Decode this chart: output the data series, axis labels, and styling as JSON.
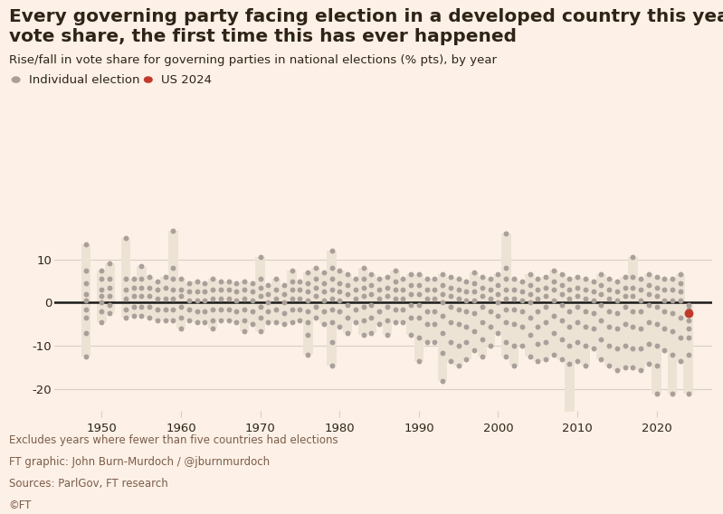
{
  "title_line1": "Every governing party facing election in a developed country this year lost",
  "title_line2": "vote share, the first time this has ever happened",
  "subtitle": "Rise/fall in vote share for governing parties in national elections (% pts), by year",
  "legend_individual": "Individual election",
  "legend_us2024": "US 2024",
  "background_color": "#fdf0e6",
  "dot_color": "#aaa09a",
  "highlight_color": "#c0392b",
  "bar_color": "#ede3d5",
  "zero_line_color": "#1a1a1a",
  "grid_color": "#d8cfc7",
  "text_color": "#2d2416",
  "footnote_color": "#7a5c48",
  "ylabel_range": [
    -25,
    20
  ],
  "yticks": [
    -20,
    -10,
    0,
    10
  ],
  "xticks": [
    1950,
    1960,
    1970,
    1980,
    1990,
    2000,
    2010,
    2020
  ],
  "footnote1": "Excludes years where fewer than five countries had elections",
  "footnote2": "FT graphic: John Burn-Murdoch / @jburnmurdoch",
  "footnote3": "Sources: ParlGov, FT research",
  "footnote4": "©FT",
  "elections": {
    "1948": [
      13.5,
      7.5,
      4.5,
      2.0,
      0.5,
      -1.5,
      -3.5,
      -7.0,
      -12.5
    ],
    "1950": [
      7.5,
      5.5,
      3.0,
      1.5,
      0.0,
      -2.0,
      -4.5
    ],
    "1951": [
      9.0,
      5.5,
      3.5,
      1.5,
      -0.5,
      -2.5
    ],
    "1953": [
      15.0,
      5.5,
      3.0,
      1.0,
      -1.5,
      -3.5
    ],
    "1954": [
      5.5,
      3.5,
      1.5,
      -1.0,
      -3.0
    ],
    "1955": [
      8.5,
      5.5,
      3.5,
      1.5,
      -1.0,
      -3.0
    ],
    "1956": [
      6.0,
      3.5,
      1.5,
      -1.0,
      -3.5
    ],
    "1957": [
      5.0,
      3.0,
      1.0,
      -1.5,
      -4.0
    ],
    "1958": [
      6.0,
      3.5,
      1.0,
      -1.5,
      -4.0
    ],
    "1959": [
      16.5,
      8.0,
      5.5,
      3.0,
      1.0,
      -1.5,
      -4.0
    ],
    "1960": [
      5.5,
      3.0,
      1.5,
      -1.0,
      -3.5,
      -6.0
    ],
    "1961": [
      4.5,
      2.5,
      0.5,
      -1.5,
      -4.0
    ],
    "1962": [
      5.0,
      2.5,
      0.5,
      -2.0,
      -4.5
    ],
    "1963": [
      4.5,
      2.5,
      0.5,
      -2.0,
      -4.5
    ],
    "1964": [
      5.5,
      3.0,
      1.0,
      -1.5,
      -4.0,
      -6.0
    ],
    "1965": [
      5.0,
      3.0,
      1.0,
      -1.5,
      -4.0
    ],
    "1966": [
      5.0,
      3.0,
      1.0,
      -1.5,
      -4.0
    ],
    "1967": [
      4.5,
      2.5,
      0.5,
      -2.0,
      -4.5
    ],
    "1968": [
      5.0,
      3.0,
      1.0,
      -1.5,
      -4.0,
      -6.5
    ],
    "1969": [
      4.5,
      2.5,
      0.5,
      -2.0,
      -5.0
    ],
    "1970": [
      10.5,
      5.5,
      3.5,
      1.5,
      -1.0,
      -3.5,
      -6.5
    ],
    "1971": [
      4.0,
      2.0,
      0.0,
      -2.0,
      -4.5
    ],
    "1972": [
      5.5,
      3.0,
      1.0,
      -1.5,
      -4.5
    ],
    "1973": [
      4.0,
      2.0,
      0.0,
      -2.5,
      -5.0
    ],
    "1974": [
      7.5,
      5.0,
      3.0,
      1.0,
      -1.5,
      -4.5
    ],
    "1975": [
      5.0,
      3.0,
      1.0,
      -1.5,
      -4.0
    ],
    "1976": [
      7.0,
      4.5,
      2.5,
      0.5,
      -2.0,
      -4.5,
      -7.5,
      -12.0
    ],
    "1977": [
      8.0,
      5.5,
      3.5,
      1.5,
      -1.0,
      -3.5
    ],
    "1978": [
      7.0,
      4.5,
      2.5,
      0.5,
      -2.0,
      -5.0
    ],
    "1979": [
      12.0,
      8.0,
      5.5,
      3.0,
      1.0,
      -1.5,
      -4.5,
      -9.0,
      -14.5
    ],
    "1980": [
      7.5,
      4.5,
      2.5,
      0.5,
      -2.0,
      -5.5
    ],
    "1981": [
      6.5,
      4.0,
      2.0,
      -0.5,
      -3.5,
      -7.0
    ],
    "1982": [
      5.5,
      3.0,
      1.0,
      -1.5,
      -4.5
    ],
    "1983": [
      8.0,
      5.5,
      3.5,
      1.5,
      -1.0,
      -4.0,
      -7.5
    ],
    "1984": [
      6.5,
      4.0,
      2.0,
      -0.5,
      -3.5,
      -7.0
    ],
    "1985": [
      5.5,
      3.0,
      1.0,
      -2.0,
      -5.0
    ],
    "1986": [
      6.0,
      3.5,
      1.5,
      -1.0,
      -4.0,
      -7.5
    ],
    "1987": [
      7.5,
      5.0,
      3.0,
      1.0,
      -1.5,
      -4.5
    ],
    "1988": [
      5.5,
      3.0,
      1.0,
      -1.5,
      -4.5
    ],
    "1989": [
      6.5,
      4.0,
      2.0,
      -0.5,
      -3.5,
      -7.5
    ],
    "1990": [
      6.5,
      4.0,
      2.0,
      -0.5,
      -3.5,
      -8.0,
      -13.5
    ],
    "1991": [
      5.5,
      3.0,
      1.0,
      -2.0,
      -5.0,
      -9.0
    ],
    "1992": [
      5.5,
      3.0,
      1.0,
      -2.0,
      -5.0,
      -9.0
    ],
    "1993": [
      6.5,
      4.0,
      2.0,
      0.0,
      -3.0,
      -7.0,
      -11.5,
      -18.0
    ],
    "1994": [
      6.0,
      3.5,
      1.5,
      -1.0,
      -4.5,
      -9.0,
      -13.5
    ],
    "1995": [
      5.5,
      3.0,
      1.0,
      -1.5,
      -5.0,
      -10.0,
      -14.5
    ],
    "1996": [
      5.0,
      2.5,
      0.5,
      -2.0,
      -5.5,
      -9.0,
      -13.0
    ],
    "1997": [
      7.0,
      4.5,
      2.5,
      0.5,
      -2.5,
      -6.5,
      -11.0
    ],
    "1998": [
      6.0,
      3.5,
      1.5,
      -1.0,
      -4.5,
      -8.5,
      -12.5
    ],
    "1999": [
      5.5,
      3.0,
      1.0,
      -2.0,
      -5.5,
      -10.0
    ],
    "2000": [
      6.5,
      4.0,
      2.0,
      0.0,
      -3.0,
      -7.0
    ],
    "2001": [
      16.0,
      8.0,
      5.5,
      3.0,
      1.0,
      -1.5,
      -4.5,
      -9.0,
      -12.5
    ],
    "2002": [
      5.5,
      3.0,
      1.0,
      -1.5,
      -5.0,
      -10.0,
      -14.5
    ],
    "2003": [
      5.0,
      2.5,
      0.5,
      -2.0,
      -5.5,
      -10.0
    ],
    "2004": [
      6.5,
      4.0,
      2.0,
      0.0,
      -3.5,
      -7.5,
      -12.5
    ],
    "2005": [
      5.5,
      3.0,
      1.0,
      -2.0,
      -5.5,
      -9.5,
      -13.5
    ],
    "2006": [
      6.0,
      3.5,
      1.5,
      -1.0,
      -4.5,
      -9.0,
      -13.0
    ],
    "2007": [
      7.5,
      5.0,
      3.0,
      0.5,
      -3.0,
      -7.0,
      -12.0
    ],
    "2008": [
      6.5,
      4.0,
      2.0,
      -0.5,
      -4.0,
      -8.5,
      -13.0
    ],
    "2009": [
      5.5,
      3.0,
      1.0,
      -2.0,
      -5.5,
      -10.0,
      -14.0,
      -26.5
    ],
    "2010": [
      6.0,
      3.5,
      1.5,
      -1.0,
      -4.5,
      -9.0,
      -13.5
    ],
    "2011": [
      5.5,
      3.0,
      1.0,
      -2.0,
      -5.5,
      -10.0,
      -14.5
    ],
    "2012": [
      5.0,
      2.5,
      0.5,
      -2.5,
      -6.0,
      -10.5
    ],
    "2013": [
      6.5,
      4.0,
      2.0,
      -0.5,
      -4.0,
      -8.5,
      -13.0
    ],
    "2014": [
      5.5,
      3.0,
      1.0,
      -2.0,
      -5.5,
      -10.0,
      -14.5
    ],
    "2015": [
      5.0,
      2.5,
      0.5,
      -2.5,
      -6.0,
      -10.5,
      -15.5
    ],
    "2016": [
      6.0,
      3.5,
      1.5,
      -1.0,
      -5.0,
      -10.0,
      -15.0
    ],
    "2017": [
      10.5,
      6.0,
      3.5,
      1.5,
      -2.0,
      -5.5,
      -10.5,
      -15.0
    ],
    "2018": [
      5.5,
      3.0,
      0.5,
      -2.0,
      -6.0,
      -10.5,
      -15.5
    ],
    "2019": [
      6.5,
      4.0,
      2.0,
      -0.5,
      -4.5,
      -9.5,
      -14.0
    ],
    "2020": [
      6.0,
      3.5,
      1.5,
      -1.0,
      -5.0,
      -10.0,
      -14.5,
      -21.0
    ],
    "2021": [
      5.5,
      3.0,
      0.5,
      -2.0,
      -6.0,
      -11.0
    ],
    "2022": [
      5.5,
      3.0,
      0.5,
      -2.5,
      -6.5,
      -12.0,
      -21.0
    ],
    "2023": [
      6.5,
      4.5,
      2.5,
      0.5,
      -3.5,
      -8.0,
      -13.5
    ],
    "2024": [
      -0.5,
      -1.5,
      -2.5,
      -4.0,
      -6.0,
      -8.0,
      -12.0,
      -21.0
    ]
  },
  "us_2024_value": -2.5,
  "title_fontsize": 14.5,
  "subtitle_fontsize": 9.5,
  "legend_fontsize": 9.5,
  "tick_fontsize": 9.5,
  "footnote_fontsize": 8.5
}
